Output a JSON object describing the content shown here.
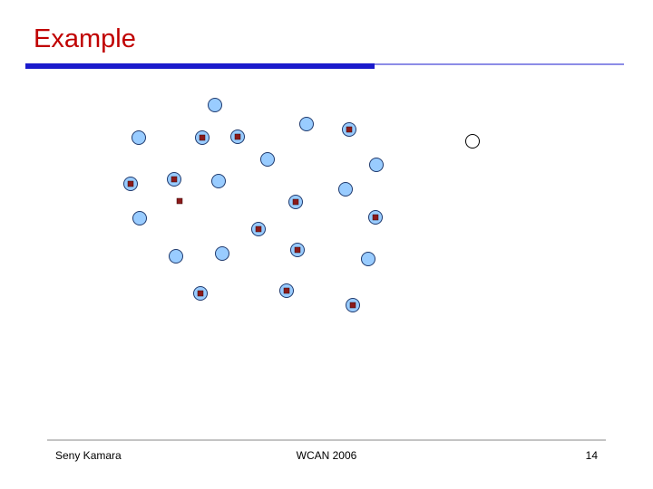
{
  "header": {
    "title": "Example"
  },
  "footer": {
    "author": "Seny Kamara",
    "event": "WCAN 2006",
    "page": "14"
  }
}
